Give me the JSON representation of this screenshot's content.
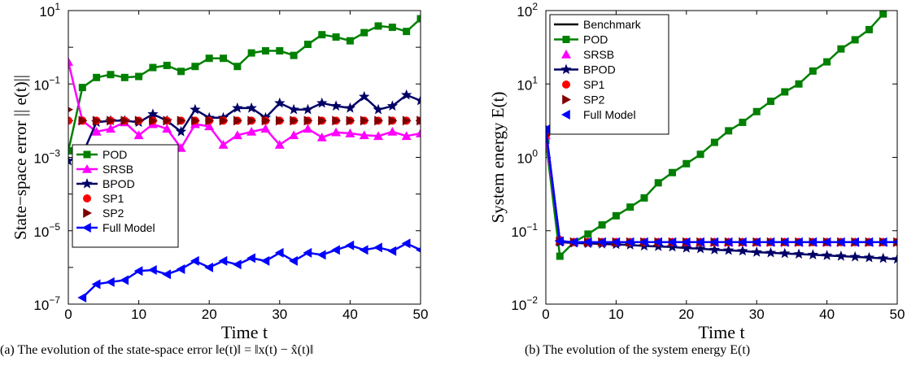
{
  "captions": {
    "a": "(a) The evolution of the state-space error ‖e(t)‖ = ‖x(t) − x̂(t)‖",
    "b": "(b) The evolution of the system energy E(t)"
  },
  "colors": {
    "POD": "#008000",
    "SRSB": "#ff00ff",
    "BPOD": "#000066",
    "SP1": "#ff0000",
    "SP2": "#800000",
    "Full Model": "#0000ff",
    "Benchmark": "#000000"
  },
  "chart_data": [
    {
      "type": "line",
      "xlabel": "Time t",
      "ylabel": "State−space error || e(t)||",
      "yscale": "log",
      "xlim": [
        0,
        50
      ],
      "ylim": [
        1e-07,
        10
      ],
      "xticks": [
        "0",
        "10",
        "20",
        "30",
        "40",
        "50"
      ],
      "yticks": [
        "10−7",
        "10−5",
        "10−3",
        "10−1",
        "101"
      ],
      "legend": "bottom-left",
      "x": [
        0,
        2,
        4,
        6,
        8,
        10,
        12,
        14,
        16,
        18,
        20,
        22,
        24,
        26,
        28,
        30,
        32,
        34,
        36,
        38,
        40,
        42,
        44,
        46,
        48,
        50
      ],
      "series": [
        {
          "name": "POD",
          "marker": "square",
          "values": [
            0.0015,
            0.08,
            0.15,
            0.18,
            0.15,
            0.16,
            0.28,
            0.32,
            0.22,
            0.3,
            0.5,
            0.5,
            0.3,
            0.7,
            0.8,
            0.8,
            0.6,
            1.2,
            2.2,
            1.9,
            1.5,
            2.5,
            3.8,
            3.5,
            2.7,
            6
          ]
        },
        {
          "name": "SRSB",
          "marker": "triangle-up",
          "values": [
            0.4,
            0.01,
            0.005,
            0.006,
            0.009,
            0.004,
            0.008,
            0.006,
            0.0018,
            0.008,
            0.007,
            0.0022,
            0.004,
            0.005,
            0.006,
            0.0022,
            0.004,
            0.006,
            0.0035,
            0.0048,
            0.0045,
            0.004,
            0.0038,
            0.005,
            0.0038,
            0.0045
          ]
        },
        {
          "name": "BPOD",
          "marker": "star",
          "values": [
            0.0008,
            0.0012,
            0.009,
            0.01,
            0.01,
            0.009,
            0.015,
            0.01,
            0.005,
            0.02,
            0.012,
            0.012,
            0.022,
            0.022,
            0.012,
            0.03,
            0.02,
            0.02,
            0.03,
            0.025,
            0.022,
            0.045,
            0.02,
            0.025,
            0.05,
            0.035
          ]
        },
        {
          "name": "SP1",
          "marker": "circle",
          "values": [
            0.01,
            0.01,
            0.01,
            0.01,
            0.01,
            0.01,
            0.01,
            0.01,
            0.01,
            0.01,
            0.01,
            0.01,
            0.01,
            0.01,
            0.01,
            0.01,
            0.01,
            0.01,
            0.01,
            0.01,
            0.01,
            0.01,
            0.01,
            0.01,
            0.01,
            0.01
          ]
        },
        {
          "name": "SP2",
          "marker": "triangle-right",
          "values": [
            0.02,
            0.01,
            0.01,
            0.01,
            0.01,
            0.01,
            0.01,
            0.01,
            0.01,
            0.01,
            0.01,
            0.01,
            0.01,
            0.01,
            0.01,
            0.01,
            0.01,
            0.01,
            0.01,
            0.01,
            0.01,
            0.01,
            0.01,
            0.01,
            0.01,
            0.01
          ]
        },
        {
          "name": "Full Model",
          "marker": "triangle-left",
          "values": [
            null,
            1.5e-07,
            3.5e-07,
            4e-07,
            4.5e-07,
            8e-07,
            8.5e-07,
            6.5e-07,
            9e-07,
            1.5e-06,
            1e-06,
            1.5e-06,
            1.2e-06,
            1.8e-06,
            1.5e-06,
            2.5e-06,
            1.5e-06,
            2.5e-06,
            2.2e-06,
            3e-06,
            4e-06,
            3e-06,
            3.5e-06,
            2.8e-06,
            4.5e-06,
            3e-06
          ]
        }
      ]
    },
    {
      "type": "line",
      "xlabel": "Time t",
      "ylabel": "System energy  E(t)",
      "yscale": "log",
      "xlim": [
        0,
        50
      ],
      "ylim": [
        0.01,
        100
      ],
      "xticks": [
        "0",
        "10",
        "20",
        "30",
        "40",
        "50"
      ],
      "yticks": [
        "10−2",
        "10−1",
        "100",
        "101",
        "102"
      ],
      "legend": "top-left",
      "x": [
        0,
        2,
        4,
        6,
        8,
        10,
        12,
        14,
        16,
        18,
        20,
        22,
        24,
        26,
        28,
        30,
        32,
        34,
        36,
        38,
        40,
        42,
        44,
        46,
        48,
        50
      ],
      "series": [
        {
          "name": "Benchmark",
          "marker": "none",
          "values": [
            2.0,
            0.072,
            0.07,
            0.07,
            0.07,
            0.07,
            0.07,
            0.07,
            0.07,
            0.07,
            0.07,
            0.07,
            0.07,
            0.07,
            0.07,
            0.07,
            0.07,
            0.07,
            0.07,
            0.07,
            0.07,
            0.07,
            0.07,
            0.07,
            0.07,
            0.07
          ]
        },
        {
          "name": "POD",
          "marker": "square",
          "values": [
            1.7,
            0.045,
            0.07,
            0.09,
            0.12,
            0.16,
            0.21,
            0.28,
            0.45,
            0.62,
            0.82,
            1.1,
            1.6,
            2.3,
            3.0,
            4.2,
            5.8,
            7.8,
            10,
            15,
            20,
            30,
            40,
            55,
            90,
            null
          ]
        },
        {
          "name": "SRSB",
          "marker": "triangle-up",
          "values": [
            2.0,
            0.072,
            0.07,
            0.07,
            0.07,
            0.07,
            0.07,
            0.07,
            0.07,
            0.07,
            0.07,
            0.07,
            0.07,
            0.07,
            0.07,
            0.07,
            0.07,
            0.07,
            0.07,
            0.07,
            0.07,
            0.07,
            0.07,
            0.07,
            0.07,
            0.07
          ]
        },
        {
          "name": "BPOD",
          "marker": "star",
          "values": [
            2.4,
            0.07,
            0.068,
            0.067,
            0.066,
            0.065,
            0.064,
            0.062,
            0.061,
            0.06,
            0.058,
            0.057,
            0.055,
            0.054,
            0.053,
            0.051,
            0.05,
            0.049,
            0.048,
            0.047,
            0.046,
            0.045,
            0.044,
            0.043,
            0.042,
            0.041
          ]
        },
        {
          "name": "SP1",
          "marker": "circle",
          "values": [
            2.0,
            0.075,
            0.07,
            0.07,
            0.07,
            0.07,
            0.07,
            0.07,
            0.07,
            0.07,
            0.07,
            0.07,
            0.07,
            0.07,
            0.07,
            0.07,
            0.07,
            0.07,
            0.07,
            0.07,
            0.07,
            0.07,
            0.07,
            0.07,
            0.07,
            0.07
          ]
        },
        {
          "name": "SP2",
          "marker": "triangle-right",
          "values": [
            2.0,
            0.072,
            0.07,
            0.07,
            0.07,
            0.07,
            0.07,
            0.07,
            0.07,
            0.07,
            0.07,
            0.07,
            0.07,
            0.07,
            0.07,
            0.07,
            0.07,
            0.07,
            0.07,
            0.07,
            0.07,
            0.07,
            0.07,
            0.07,
            0.07,
            0.07
          ]
        },
        {
          "name": "Full Model",
          "marker": "triangle-left",
          "values": [
            2.4,
            0.072,
            0.07,
            0.07,
            0.07,
            0.07,
            0.07,
            0.07,
            0.07,
            0.07,
            0.07,
            0.07,
            0.07,
            0.07,
            0.07,
            0.07,
            0.07,
            0.07,
            0.07,
            0.07,
            0.07,
            0.07,
            0.07,
            0.07,
            0.07,
            0.07
          ]
        }
      ]
    }
  ]
}
